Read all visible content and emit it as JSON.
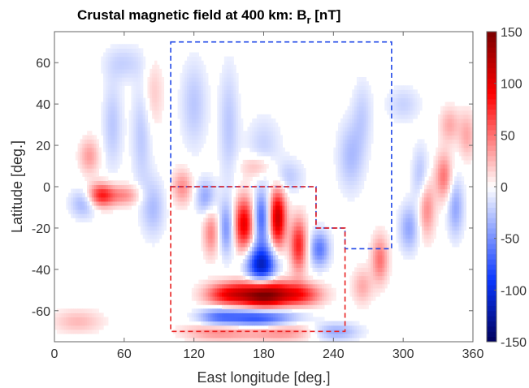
{
  "chart_data": {
    "type": "heatmap",
    "title": "Crustal magnetic field at 400 km: B",
    "title_subscript": "r",
    "title_suffix": " [nT]",
    "xlabel": "East longitude [deg.]",
    "ylabel": "Latitude [deg.]",
    "xlim": [
      0,
      360
    ],
    "ylim": [
      -75,
      75
    ],
    "xticks": [
      0,
      60,
      120,
      180,
      240,
      300,
      360
    ],
    "yticks": [
      -60,
      -40,
      -20,
      0,
      20,
      40,
      60
    ],
    "colorbar": {
      "range": [
        -150,
        150
      ],
      "ticks": [
        -150,
        -100,
        -50,
        0,
        50,
        100,
        150
      ],
      "colormap": "blue-white-red",
      "colors": {
        "min": "#00005a",
        "neg": "#0a37ff",
        "zero": "#ffffff",
        "pos": "#ff0000",
        "max": "#7a0000"
      }
    },
    "regions": [
      {
        "color": "#2048e8",
        "style": "dashed",
        "polygon": [
          [
            100,
            70
          ],
          [
            290,
            70
          ],
          [
            290,
            -30
          ],
          [
            250,
            -30
          ],
          [
            250,
            -20
          ],
          [
            225,
            -20
          ],
          [
            225,
            0
          ],
          [
            100,
            0
          ]
        ]
      },
      {
        "color": "#e82020",
        "style": "dashed",
        "polygon": [
          [
            100,
            0
          ],
          [
            225,
            0
          ],
          [
            225,
            -20
          ],
          [
            250,
            -20
          ],
          [
            250,
            -70
          ],
          [
            100,
            -70
          ]
        ]
      }
    ],
    "features": [
      {
        "lon": 180,
        "lat": -52,
        "value": 150,
        "slon": 14,
        "slat": 5
      },
      {
        "lon": 150,
        "lat": -52,
        "value": 90,
        "slon": 14,
        "slat": 4
      },
      {
        "lon": 210,
        "lat": -52,
        "value": 80,
        "slon": 14,
        "slat": 4
      },
      {
        "lon": 178,
        "lat": -38,
        "value": -115,
        "slon": 9,
        "slat": 7
      },
      {
        "lon": 175,
        "lat": -63,
        "value": -90,
        "slon": 22,
        "slat": 3.5
      },
      {
        "lon": 140,
        "lat": -63,
        "value": -45,
        "slon": 12,
        "slat": 3
      },
      {
        "lon": 140,
        "lat": -70,
        "value": 40,
        "slon": 20,
        "slat": 3
      },
      {
        "lon": 195,
        "lat": -70,
        "value": 45,
        "slon": 25,
        "slat": 3
      },
      {
        "lon": 240,
        "lat": -70,
        "value": -45,
        "slon": 15,
        "slat": 3
      },
      {
        "lon": 192,
        "lat": -15,
        "value": 115,
        "slon": 5,
        "slat": 10
      },
      {
        "lon": 163,
        "lat": -18,
        "value": 100,
        "slon": 6,
        "slat": 9
      },
      {
        "lon": 210,
        "lat": -28,
        "value": 80,
        "slon": 5,
        "slat": 9
      },
      {
        "lon": 178,
        "lat": -15,
        "value": -70,
        "slon": 5,
        "slat": 9
      },
      {
        "lon": 148,
        "lat": -20,
        "value": -50,
        "slon": 5,
        "slat": 9
      },
      {
        "lon": 228,
        "lat": -30,
        "value": -60,
        "slon": 6,
        "slat": 6
      },
      {
        "lon": 135,
        "lat": -22,
        "value": 45,
        "slon": 5,
        "slat": 8
      },
      {
        "lon": 40,
        "lat": -4,
        "value": 80,
        "slon": 8,
        "slat": 4
      },
      {
        "lon": 60,
        "lat": -4,
        "value": 40,
        "slon": 10,
        "slat": 3.5
      },
      {
        "lon": 25,
        "lat": -8,
        "value": -35,
        "slon": 8,
        "slat": 5
      },
      {
        "lon": 85,
        "lat": -10,
        "value": -30,
        "slon": 7,
        "slat": 10
      },
      {
        "lon": 110,
        "lat": 0,
        "value": 40,
        "slon": 6,
        "slat": 6
      },
      {
        "lon": 130,
        "lat": -5,
        "value": -40,
        "slon": 6,
        "slat": 6
      },
      {
        "lon": 30,
        "lat": 15,
        "value": 35,
        "slon": 6,
        "slat": 6
      },
      {
        "lon": 50,
        "lat": 30,
        "value": -25,
        "slon": 6,
        "slat": 15
      },
      {
        "lon": 75,
        "lat": 25,
        "value": -25,
        "slon": 6,
        "slat": 18
      },
      {
        "lon": 60,
        "lat": 60,
        "value": -20,
        "slon": 12,
        "slat": 6
      },
      {
        "lon": 85,
        "lat": 45,
        "value": 20,
        "slon": 6,
        "slat": 12
      },
      {
        "lon": 120,
        "lat": 40,
        "value": -25,
        "slon": 8,
        "slat": 15
      },
      {
        "lon": 150,
        "lat": 30,
        "value": -25,
        "slon": 6,
        "slat": 20
      },
      {
        "lon": 175,
        "lat": 10,
        "value": 30,
        "slon": 10,
        "slat": 4
      },
      {
        "lon": 180,
        "lat": 20,
        "value": -20,
        "slon": 10,
        "slat": 10
      },
      {
        "lon": 200,
        "lat": 5,
        "value": -25,
        "slon": 10,
        "slat": 6
      },
      {
        "lon": 255,
        "lat": 15,
        "value": -30,
        "slon": 8,
        "slat": 12
      },
      {
        "lon": 265,
        "lat": 35,
        "value": -20,
        "slon": 6,
        "slat": 12
      },
      {
        "lon": 280,
        "lat": -35,
        "value": 50,
        "slon": 5,
        "slat": 8
      },
      {
        "lon": 265,
        "lat": -48,
        "value": 30,
        "slon": 6,
        "slat": 6
      },
      {
        "lon": 305,
        "lat": -20,
        "value": -40,
        "slon": 6,
        "slat": 8
      },
      {
        "lon": 315,
        "lat": 5,
        "value": -30,
        "slon": 5,
        "slat": 10
      },
      {
        "lon": 320,
        "lat": -10,
        "value": 45,
        "slon": 5,
        "slat": 10
      },
      {
        "lon": 335,
        "lat": 5,
        "value": 50,
        "slon": 5,
        "slat": 8
      },
      {
        "lon": 340,
        "lat": 30,
        "value": 30,
        "slon": 6,
        "slat": 6
      },
      {
        "lon": 345,
        "lat": -10,
        "value": -40,
        "slon": 5,
        "slat": 10
      },
      {
        "lon": 355,
        "lat": 25,
        "value": 30,
        "slon": 5,
        "slat": 8
      },
      {
        "lon": 20,
        "lat": -65,
        "value": 25,
        "slon": 15,
        "slat": 4
      },
      {
        "lon": 300,
        "lat": 40,
        "value": -20,
        "slon": 10,
        "slat": 6
      }
    ]
  }
}
